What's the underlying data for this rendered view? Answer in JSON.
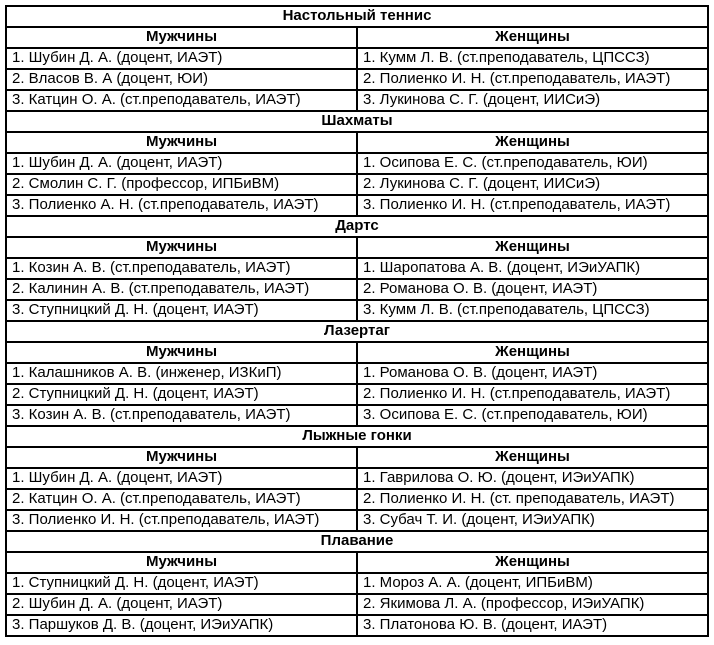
{
  "table": {
    "men_header": "Мужчины",
    "women_header": "Женщины",
    "sections": [
      {
        "title": "Настольный теннис",
        "men": [
          "1. Шубин Д. А. (доцент, ИАЭТ)",
          "2. Власов В. А (доцент, ЮИ)",
          "3. Катцин О. А. (ст.преподаватель, ИАЭТ)"
        ],
        "women": [
          "1. Кумм Л. В. (ст.преподаватель, ЦПССЗ)",
          "2. Полиенко И. Н. (ст.преподаватель, ИАЭТ)",
          "3. Лукинова С. Г. (доцент, ИИСиЭ)"
        ]
      },
      {
        "title": "Шахматы",
        "men": [
          "1. Шубин Д. А. (доцент, ИАЭТ)",
          "2. Смолин С. Г. (профессор, ИПБиВМ)",
          "3. Полиенко А. Н. (ст.преподаватель, ИАЭТ)"
        ],
        "women": [
          "1. Осипова Е. С. (ст.преподаватель, ЮИ)",
          "2. Лукинова С. Г. (доцент, ИИСиЭ)",
          "3. Полиенко И. Н. (ст.преподаватель, ИАЭТ)"
        ]
      },
      {
        "title": "Дартс",
        "men": [
          "1. Козин А. В. (ст.преподаватель, ИАЭТ)",
          "2. Калинин А. В. (ст.преподаватель, ИАЭТ)",
          "3. Ступницкий Д. Н. (доцент, ИАЭТ)"
        ],
        "women": [
          "1. Шаропатова А. В. (доцент, ИЭиУАПК)",
          "2. Романова О. В. (доцент, ИАЭТ)",
          "3. Кумм Л. В. (ст.преподаватель, ЦПССЗ)"
        ]
      },
      {
        "title": "Лазертаг",
        "men": [
          "1. Калашников А. В. (инженер, ИЗКиП)",
          "2. Ступницкий Д. Н. (доцент, ИАЭТ)",
          "3. Козин А. В. (ст.преподаватель, ИАЭТ)"
        ],
        "women": [
          "1. Романова О. В. (доцент, ИАЭТ)",
          "2. Полиенко И. Н. (ст.преподаватель, ИАЭТ)",
          "3. Осипова Е. С. (ст.преподаватель, ЮИ)"
        ]
      },
      {
        "title": "Лыжные гонки",
        "men": [
          "1. Шубин Д. А. (доцент, ИАЭТ)",
          "2. Катцин О. А. (ст.преподаватель, ИАЭТ)",
          "3. Полиенко И. Н. (ст.преподаватель, ИАЭТ)"
        ],
        "women": [
          "1. Гаврилова О. Ю. (доцент, ИЭиУАПК)",
          "2. Полиенко И. Н. (ст. преподаватель, ИАЭТ)",
          "3. Субач Т. И. (доцент, ИЭиУАПК)"
        ]
      },
      {
        "title": "Плавание",
        "men": [
          "1. Ступницкий Д. Н. (доцент, ИАЭТ)",
          "2. Шубин Д. А. (доцент, ИАЭТ)",
          "3. Паршуков Д. В. (доцент, ИЭиУАПК)"
        ],
        "women": [
          "1. Мороз А. А. (доцент, ИПБиВМ)",
          "2. Якимова Л. А. (профессор, ИЭиУАПК)",
          "3. Платонова Ю. В. (доцент, ИАЭТ)"
        ]
      }
    ]
  }
}
